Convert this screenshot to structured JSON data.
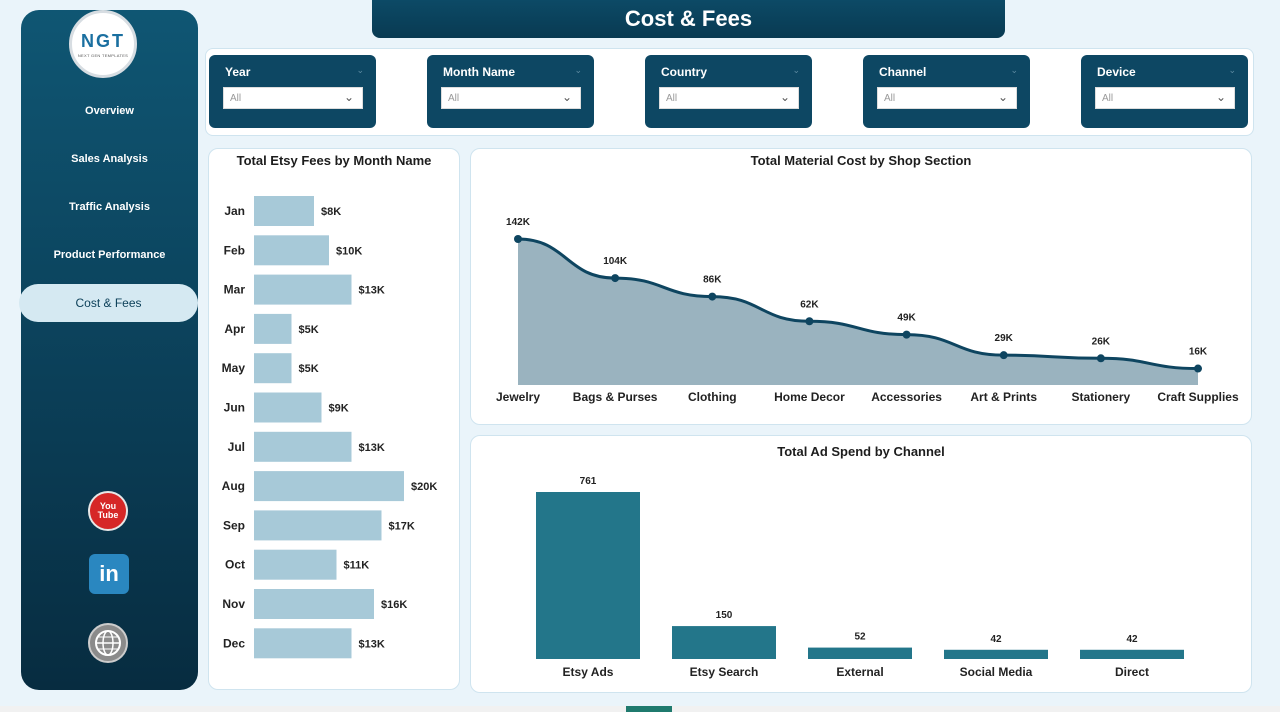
{
  "header": {
    "title": "Cost & Fees"
  },
  "logo": {
    "text": "NGT",
    "subtext": "NEXT GEN TEMPLATES"
  },
  "sidebar": {
    "items": [
      {
        "label": "Overview",
        "active": false
      },
      {
        "label": "Sales Analysis",
        "active": false
      },
      {
        "label": "Traffic Analysis",
        "active": false
      },
      {
        "label": "Product Performance",
        "active": false
      },
      {
        "label": "Cost & Fees",
        "active": true
      }
    ],
    "social": [
      {
        "icon": "youtube-icon",
        "label": "You\nTube"
      },
      {
        "icon": "linkedin-icon",
        "label": "in"
      },
      {
        "icon": "website-icon",
        "label": "www"
      }
    ]
  },
  "filters": [
    {
      "label": "Year",
      "value": "All"
    },
    {
      "label": "Month Name",
      "value": "All"
    },
    {
      "label": "Country",
      "value": "All"
    },
    {
      "label": "Channel",
      "value": "All"
    },
    {
      "label": "Device",
      "value": "All"
    }
  ],
  "chart_data": [
    {
      "type": "bar",
      "orientation": "horizontal",
      "title": "Total Etsy Fees by Month Name",
      "categories": [
        "Jan",
        "Feb",
        "Mar",
        "Apr",
        "May",
        "Jun",
        "Jul",
        "Aug",
        "Sep",
        "Oct",
        "Nov",
        "Dec"
      ],
      "values": [
        8,
        10,
        13,
        5,
        5,
        9,
        13,
        20,
        17,
        11,
        16,
        13
      ],
      "labels": [
        "$8K",
        "$10K",
        "$13K",
        "$5K",
        "$5K",
        "$9K",
        "$13K",
        "$20K",
        "$17K",
        "$11K",
        "$16K",
        "$13K"
      ],
      "color": "#a7c9d8"
    },
    {
      "type": "area",
      "title": "Total Material Cost by Shop Section",
      "categories": [
        "Jewelry",
        "Bags & Purses",
        "Clothing",
        "Home Decor",
        "Accessories",
        "Art & Prints",
        "Stationery",
        "Craft Supplies"
      ],
      "values": [
        142,
        104,
        86,
        62,
        49,
        29,
        26,
        16
      ],
      "labels": [
        "142K",
        "104K",
        "86K",
        "62K",
        "49K",
        "29K",
        "26K",
        "16K"
      ],
      "color": "#9ab3bf",
      "line_color": "#0e4560"
    },
    {
      "type": "bar",
      "title": "Total Ad Spend by Channel",
      "categories": [
        "Etsy Ads",
        "Etsy Search",
        "External",
        "Social Media",
        "Direct"
      ],
      "values": [
        761,
        150,
        52,
        42,
        42
      ],
      "labels": [
        "761",
        "150",
        "52",
        "42",
        "42"
      ],
      "color": "#23768a"
    }
  ]
}
